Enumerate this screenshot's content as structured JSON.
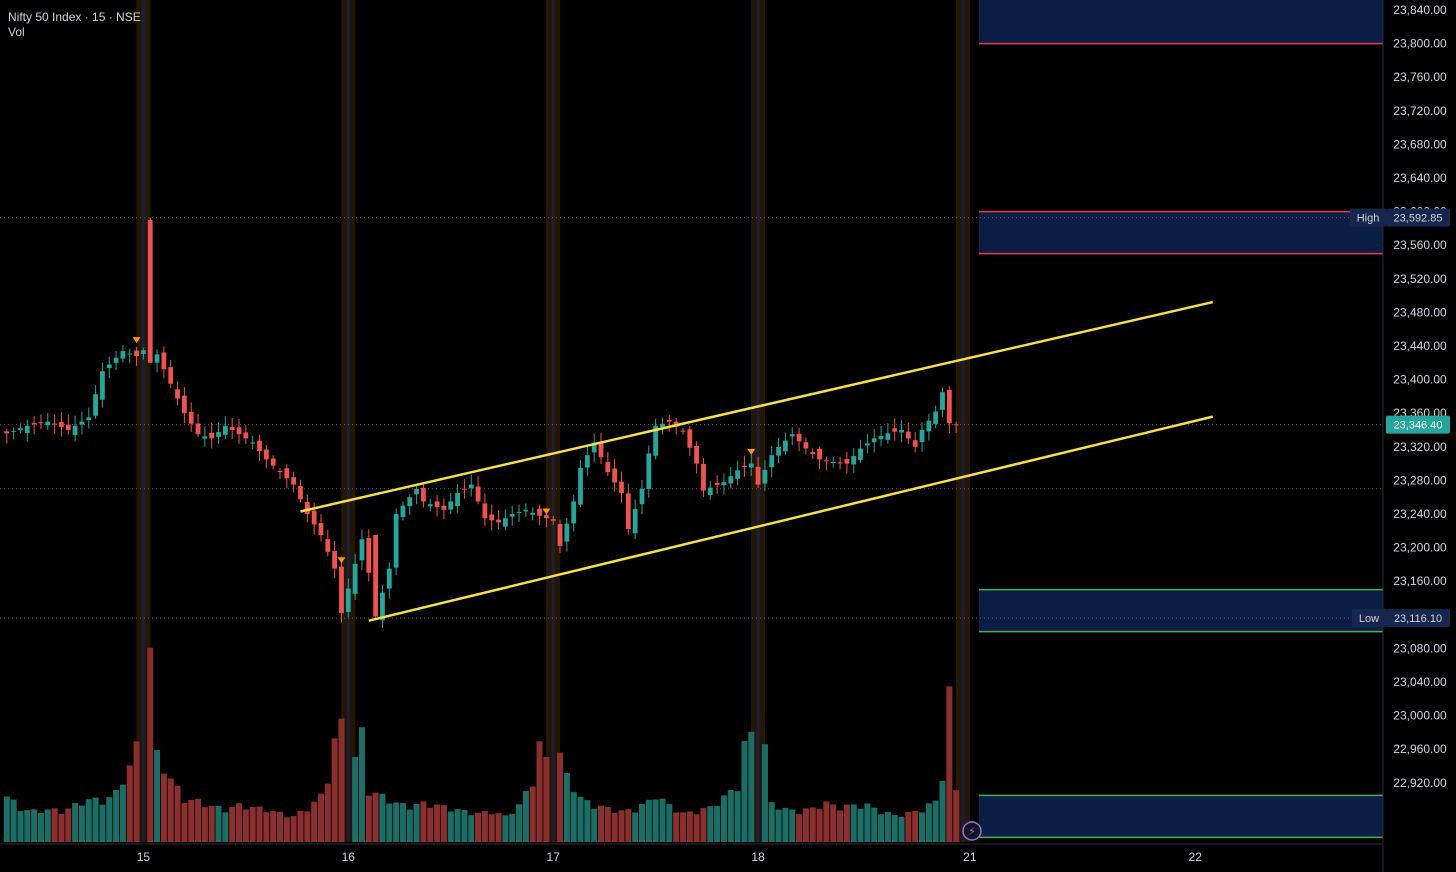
{
  "header": {
    "symbol_line": "Nifty 50 Index · 15 · NSE",
    "indicator": "Vol"
  },
  "colors": {
    "up": "#26a69a",
    "down": "#ef5350",
    "up_vol": "#1c6d66",
    "down_vol": "#8a2e2e",
    "channel": "#f5e04a",
    "zone_fill": "#0b1e46",
    "zone_red": "#f23645",
    "zone_green": "#4caf50",
    "session": "#2a1a06",
    "current_price_bg": "#26a69a",
    "high_low_tag": "#16264d"
  },
  "chart_data": {
    "type": "candlestick",
    "title": "Nifty 50 Index · 15 · NSE",
    "y_axis": {
      "min": 22880,
      "max": 23860,
      "step": 40,
      "position": "right",
      "ticks": [
        "23,840.00",
        "23,800.00",
        "23,760.00",
        "23,720.00",
        "23,680.00",
        "23,640.00",
        "23,600.00",
        "23,560.00",
        "23,520.00",
        "23,480.00",
        "23,440.00",
        "23,400.00",
        "23,360.00",
        "23,320.00",
        "23,280.00",
        "23,240.00",
        "23,200.00",
        "23,160.00",
        "23,120.00",
        "23,080.00",
        "23,040.00",
        "23,000.00",
        "22,960.00",
        "22,920.00"
      ]
    },
    "x_axis": {
      "labels": [
        {
          "label": "15",
          "index": 20
        },
        {
          "label": "16",
          "index": 50
        },
        {
          "label": "17",
          "index": 80
        },
        {
          "label": "18",
          "index": 110
        },
        {
          "label": "21",
          "index": 141
        },
        {
          "label": "22",
          "index": 174
        }
      ]
    },
    "ohlc_points": [
      {
        "index": 0,
        "close": 23336
      },
      {
        "index": 3,
        "close": 23345
      },
      {
        "index": 6,
        "close": 23350
      },
      {
        "index": 9,
        "close": 23340
      },
      {
        "index": 12,
        "close": 23355
      },
      {
        "index": 14,
        "close": 23410
      },
      {
        "index": 17,
        "close": 23434
      },
      {
        "index": 19,
        "close": 23428
      },
      {
        "index": 20,
        "close": 23435
      },
      {
        "index": 21,
        "close": 23460
      },
      {
        "index": 22,
        "close": 23430
      },
      {
        "index": 24,
        "close": 23395
      },
      {
        "index": 26,
        "close": 23360
      },
      {
        "index": 28,
        "close": 23335
      },
      {
        "index": 30,
        "close": 23330
      },
      {
        "index": 32,
        "close": 23345
      },
      {
        "index": 34,
        "close": 23335
      },
      {
        "index": 36,
        "close": 23325
      },
      {
        "index": 38,
        "close": 23305
      },
      {
        "index": 40,
        "close": 23290
      },
      {
        "index": 42,
        "close": 23275
      },
      {
        "index": 44,
        "close": 23240
      },
      {
        "index": 46,
        "close": 23215
      },
      {
        "index": 48,
        "close": 23175
      },
      {
        "index": 49,
        "close": 23122
      },
      {
        "index": 52,
        "close": 23210
      },
      {
        "index": 53,
        "close": 23170
      },
      {
        "index": 54,
        "close": 23118
      },
      {
        "index": 56,
        "close": 23175
      },
      {
        "index": 57,
        "close": 23240
      },
      {
        "index": 60,
        "close": 23270
      },
      {
        "index": 61,
        "close": 23255
      },
      {
        "index": 64,
        "close": 23245
      },
      {
        "index": 66,
        "close": 23265
      },
      {
        "index": 68,
        "close": 23275
      },
      {
        "index": 70,
        "close": 23235
      },
      {
        "index": 72,
        "close": 23230
      },
      {
        "index": 74,
        "close": 23240
      },
      {
        "index": 76,
        "close": 23245
      },
      {
        "index": 78,
        "close": 23238
      },
      {
        "index": 80,
        "close": 23232
      },
      {
        "index": 81,
        "close": 23202
      },
      {
        "index": 83,
        "close": 23255
      },
      {
        "index": 84,
        "close": 23295
      },
      {
        "index": 86,
        "close": 23325
      },
      {
        "index": 88,
        "close": 23290
      },
      {
        "index": 90,
        "close": 23265
      },
      {
        "index": 91,
        "close": 23222
      },
      {
        "index": 93,
        "close": 23270
      },
      {
        "index": 94,
        "close": 23312
      },
      {
        "index": 95,
        "close": 23345
      },
      {
        "index": 97,
        "close": 23350
      },
      {
        "index": 99,
        "close": 23338
      },
      {
        "index": 101,
        "close": 23300
      },
      {
        "index": 102,
        "close": 23268
      },
      {
        "index": 105,
        "close": 23278
      },
      {
        "index": 107,
        "close": 23292
      },
      {
        "index": 109,
        "close": 23300
      },
      {
        "index": 110,
        "close": 23275
      },
      {
        "index": 112,
        "close": 23310
      },
      {
        "index": 113,
        "close": 23320
      },
      {
        "index": 115,
        "close": 23335
      },
      {
        "index": 117,
        "close": 23318
      },
      {
        "index": 119,
        "close": 23305
      },
      {
        "index": 121,
        "close": 23302
      },
      {
        "index": 123,
        "close": 23300
      },
      {
        "index": 125,
        "close": 23318
      },
      {
        "index": 127,
        "close": 23330
      },
      {
        "index": 129,
        "close": 23336
      },
      {
        "index": 131,
        "close": 23340
      },
      {
        "index": 133,
        "close": 23320
      },
      {
        "index": 134,
        "close": 23340
      },
      {
        "index": 136,
        "close": 23362
      },
      {
        "index": 137,
        "close": 23385
      },
      {
        "index": 138,
        "close": 23348
      },
      {
        "index": 139,
        "close": 23346
      }
    ],
    "spikes": [
      {
        "index": 21,
        "open": 23420,
        "high": 23592.85,
        "low": 23420,
        "close": 23460,
        "direction": "down"
      },
      {
        "index": 54,
        "open": 23175,
        "high": 23200,
        "low": 23116.1,
        "close": 23118,
        "direction": "down"
      }
    ],
    "volume_points": [
      {
        "index": 0,
        "v": 0.45
      },
      {
        "index": 2,
        "v": 0.33
      },
      {
        "index": 4,
        "v": 0.3
      },
      {
        "index": 6,
        "v": 0.32
      },
      {
        "index": 8,
        "v": 0.3
      },
      {
        "index": 10,
        "v": 0.36
      },
      {
        "index": 12,
        "v": 0.42
      },
      {
        "index": 14,
        "v": 0.4
      },
      {
        "index": 16,
        "v": 0.48
      },
      {
        "index": 18,
        "v": 0.75
      },
      {
        "index": 19,
        "v": 0.93
      },
      {
        "index": 20,
        "v": 0.0
      },
      {
        "index": 21,
        "v": 1.9
      },
      {
        "index": 22,
        "v": 0.85
      },
      {
        "index": 24,
        "v": 0.62
      },
      {
        "index": 26,
        "v": 0.42
      },
      {
        "index": 28,
        "v": 0.4
      },
      {
        "index": 30,
        "v": 0.35
      },
      {
        "index": 32,
        "v": 0.32
      },
      {
        "index": 34,
        "v": 0.36
      },
      {
        "index": 36,
        "v": 0.34
      },
      {
        "index": 38,
        "v": 0.32
      },
      {
        "index": 40,
        "v": 0.28
      },
      {
        "index": 42,
        "v": 0.25
      },
      {
        "index": 44,
        "v": 0.33
      },
      {
        "index": 46,
        "v": 0.45
      },
      {
        "index": 47,
        "v": 0.63
      },
      {
        "index": 48,
        "v": 1.0
      },
      {
        "index": 49,
        "v": 1.15
      },
      {
        "index": 50,
        "v": 0.0
      },
      {
        "index": 51,
        "v": 0.82
      },
      {
        "index": 52,
        "v": 1.07
      },
      {
        "index": 53,
        "v": 0.5
      },
      {
        "index": 55,
        "v": 0.45
      },
      {
        "index": 57,
        "v": 0.38
      },
      {
        "index": 59,
        "v": 0.35
      },
      {
        "index": 61,
        "v": 0.38
      },
      {
        "index": 63,
        "v": 0.36
      },
      {
        "index": 65,
        "v": 0.33
      },
      {
        "index": 67,
        "v": 0.3
      },
      {
        "index": 69,
        "v": 0.28
      },
      {
        "index": 71,
        "v": 0.3
      },
      {
        "index": 73,
        "v": 0.25
      },
      {
        "index": 75,
        "v": 0.36
      },
      {
        "index": 77,
        "v": 0.6
      },
      {
        "index": 78,
        "v": 0.96
      },
      {
        "index": 79,
        "v": 0.8
      },
      {
        "index": 80,
        "v": 0.0
      },
      {
        "index": 81,
        "v": 0.85
      },
      {
        "index": 82,
        "v": 0.65
      },
      {
        "index": 84,
        "v": 0.43
      },
      {
        "index": 86,
        "v": 0.36
      },
      {
        "index": 88,
        "v": 0.33
      },
      {
        "index": 90,
        "v": 0.3
      },
      {
        "index": 92,
        "v": 0.32
      },
      {
        "index": 94,
        "v": 0.4
      },
      {
        "index": 95,
        "v": 0.46
      },
      {
        "index": 97,
        "v": 0.36
      },
      {
        "index": 99,
        "v": 0.28
      },
      {
        "index": 101,
        "v": 0.3
      },
      {
        "index": 103,
        "v": 0.34
      },
      {
        "index": 105,
        "v": 0.44
      },
      {
        "index": 107,
        "v": 0.55
      },
      {
        "index": 108,
        "v": 0.95
      },
      {
        "index": 109,
        "v": 1.05
      },
      {
        "index": 110,
        "v": 0.0
      },
      {
        "index": 111,
        "v": 0.92
      },
      {
        "index": 112,
        "v": 0.38
      },
      {
        "index": 114,
        "v": 0.32
      },
      {
        "index": 116,
        "v": 0.3
      },
      {
        "index": 118,
        "v": 0.33
      },
      {
        "index": 120,
        "v": 0.38
      },
      {
        "index": 122,
        "v": 0.34
      },
      {
        "index": 124,
        "v": 0.36
      },
      {
        "index": 126,
        "v": 0.36
      },
      {
        "index": 128,
        "v": 0.3
      },
      {
        "index": 130,
        "v": 0.26
      },
      {
        "index": 132,
        "v": 0.28
      },
      {
        "index": 134,
        "v": 0.32
      },
      {
        "index": 136,
        "v": 0.4
      },
      {
        "index": 137,
        "v": 0.66
      },
      {
        "index": 138,
        "v": 1.45
      },
      {
        "index": 139,
        "v": 0.5
      }
    ],
    "channel": {
      "upper": [
        {
          "index": 43,
          "price": 23243
        },
        {
          "index": 200,
          "price": 23536
        }
      ],
      "lower": [
        {
          "index": 53,
          "price": 23113
        },
        {
          "index": 200,
          "price": 23402
        }
      ]
    },
    "zones": [
      {
        "top": 23853,
        "bottom": 23800,
        "edge": "red"
      },
      {
        "top": 23600,
        "bottom": 23550,
        "edge": "red"
      },
      {
        "top": 23150,
        "bottom": 23100,
        "edge": "green"
      },
      {
        "top": 22905,
        "bottom": 22855,
        "edge": "green"
      }
    ],
    "session_breaks": [
      20,
      50,
      80,
      110,
      140
    ],
    "markers": [
      {
        "index": 19,
        "price": 23447
      },
      {
        "index": 49,
        "price": 23185
      },
      {
        "index": 79,
        "price": 23243
      },
      {
        "index": 109,
        "price": 23314
      }
    ],
    "high": {
      "label": "High",
      "price": 23592.85,
      "value_text": "23,592.85"
    },
    "low": {
      "label": "Low",
      "price": 23116.1,
      "value_text": "23,116.10"
    },
    "current": {
      "price": 23346.4,
      "value_text": "23,346.40"
    },
    "dotted_levels": [
      23592.85,
      23346.4,
      23270,
      23116.1
    ]
  }
}
